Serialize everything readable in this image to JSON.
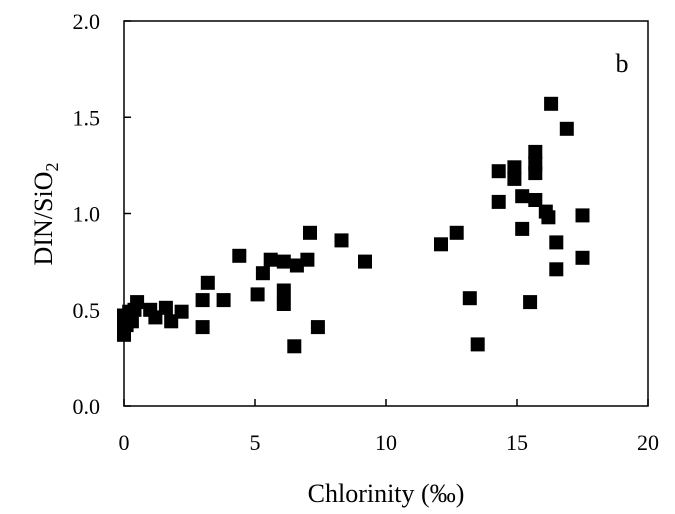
{
  "chart_data": {
    "type": "scatter",
    "panel_label": "b",
    "xlabel": "Chlorinity (‰)",
    "ylabel_main": "DIN/SiO",
    "ylabel_sub": "2",
    "xlim": [
      0,
      20
    ],
    "ylim": [
      0,
      2.0
    ],
    "xticks": [
      0,
      5,
      10,
      15,
      20
    ],
    "xtick_labels": [
      "0",
      "5",
      "10",
      "15",
      "20"
    ],
    "yticks": [
      0,
      0.5,
      1.0,
      1.5,
      2.0
    ],
    "ytick_labels": [
      "0.0",
      "0.5",
      "1.0",
      "1.5",
      "2.0"
    ],
    "grid": false,
    "marker": "filled-square",
    "marker_color": "#000000",
    "points": [
      {
        "x": 0.0,
        "y": 0.37
      },
      {
        "x": 0.0,
        "y": 0.44
      },
      {
        "x": 0.0,
        "y": 0.47
      },
      {
        "x": 0.1,
        "y": 0.42
      },
      {
        "x": 0.2,
        "y": 0.49
      },
      {
        "x": 0.3,
        "y": 0.44
      },
      {
        "x": 0.4,
        "y": 0.5
      },
      {
        "x": 0.5,
        "y": 0.54
      },
      {
        "x": 1.0,
        "y": 0.5
      },
      {
        "x": 1.2,
        "y": 0.46
      },
      {
        "x": 1.6,
        "y": 0.51
      },
      {
        "x": 1.8,
        "y": 0.44
      },
      {
        "x": 2.2,
        "y": 0.49
      },
      {
        "x": 3.0,
        "y": 0.41
      },
      {
        "x": 3.0,
        "y": 0.55
      },
      {
        "x": 3.2,
        "y": 0.64
      },
      {
        "x": 3.8,
        "y": 0.55
      },
      {
        "x": 4.4,
        "y": 0.78
      },
      {
        "x": 5.1,
        "y": 0.58
      },
      {
        "x": 5.3,
        "y": 0.69
      },
      {
        "x": 5.6,
        "y": 0.76
      },
      {
        "x": 6.1,
        "y": 0.75
      },
      {
        "x": 6.1,
        "y": 0.6
      },
      {
        "x": 6.1,
        "y": 0.53
      },
      {
        "x": 6.5,
        "y": 0.31
      },
      {
        "x": 6.6,
        "y": 0.73
      },
      {
        "x": 7.0,
        "y": 0.76
      },
      {
        "x": 7.1,
        "y": 0.9
      },
      {
        "x": 7.4,
        "y": 0.41
      },
      {
        "x": 8.3,
        "y": 0.86
      },
      {
        "x": 9.2,
        "y": 0.75
      },
      {
        "x": 12.1,
        "y": 0.84
      },
      {
        "x": 12.7,
        "y": 0.9
      },
      {
        "x": 13.2,
        "y": 0.56
      },
      {
        "x": 13.5,
        "y": 0.32
      },
      {
        "x": 14.3,
        "y": 1.22
      },
      {
        "x": 14.3,
        "y": 1.06
      },
      {
        "x": 14.9,
        "y": 1.24
      },
      {
        "x": 14.9,
        "y": 1.18
      },
      {
        "x": 15.2,
        "y": 1.09
      },
      {
        "x": 15.2,
        "y": 0.92
      },
      {
        "x": 15.5,
        "y": 0.54
      },
      {
        "x": 15.7,
        "y": 1.32
      },
      {
        "x": 15.7,
        "y": 1.26
      },
      {
        "x": 15.7,
        "y": 1.21
      },
      {
        "x": 15.7,
        "y": 1.07
      },
      {
        "x": 16.1,
        "y": 1.01
      },
      {
        "x": 16.2,
        "y": 0.98
      },
      {
        "x": 16.3,
        "y": 1.57
      },
      {
        "x": 16.5,
        "y": 0.85
      },
      {
        "x": 16.5,
        "y": 0.71
      },
      {
        "x": 16.9,
        "y": 1.44
      },
      {
        "x": 17.5,
        "y": 0.99
      },
      {
        "x": 17.5,
        "y": 0.77
      }
    ]
  }
}
